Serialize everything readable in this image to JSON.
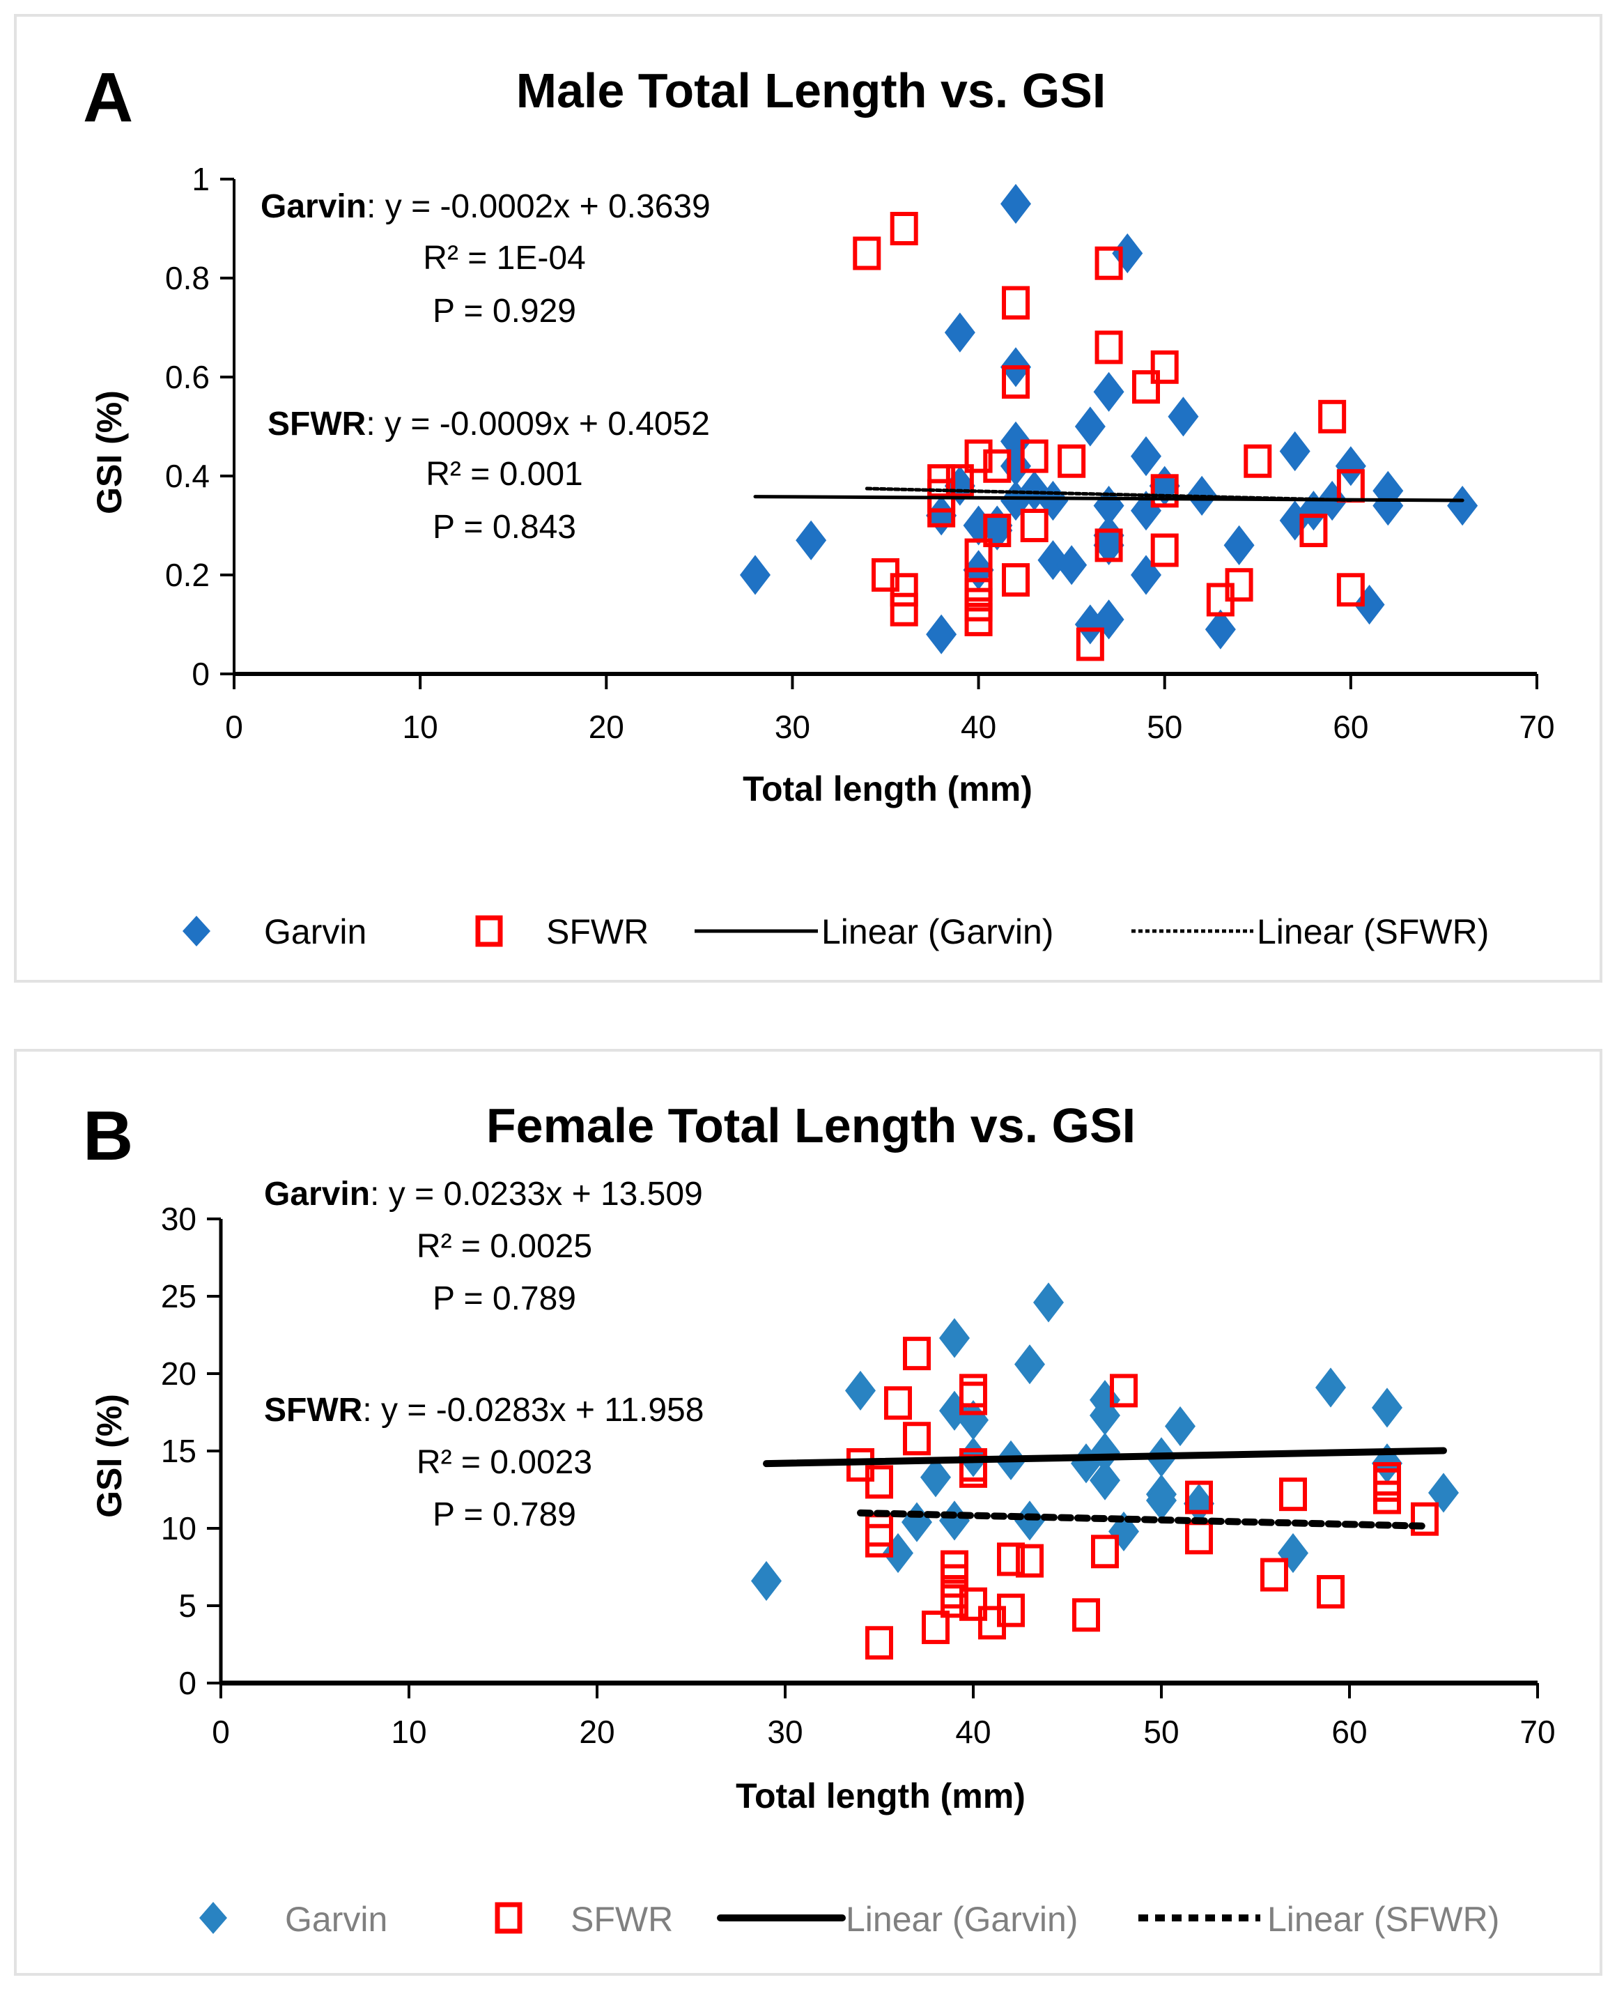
{
  "chart_data": [
    {
      "type": "scatter",
      "panel_label": "A",
      "title": "Male Total Length vs. GSI",
      "xlabel": "Total length (mm)",
      "ylabel": "GSI (%)",
      "xlim": [
        0,
        70
      ],
      "ylim": [
        0,
        1
      ],
      "xticks": [
        "0",
        "10",
        "20",
        "30",
        "40",
        "50",
        "60",
        "70"
      ],
      "yticks": [
        "0",
        "0.2",
        "0.4",
        "0.6",
        "0.8",
        "1"
      ],
      "grid": false,
      "legend_position": "bottom",
      "legend": [
        "Garvin",
        "SFWR",
        "Linear (Garvin)",
        "Linear (SFWR)"
      ],
      "annotations": {
        "garvin": {
          "label": "Garvin",
          "equation": ": y = -0.0002x + 0.3639",
          "r2": "R² = 1E-04",
          "p": "P = 0.929"
        },
        "sfwr": {
          "label": "SFWR",
          "equation": ": y = -0.0009x + 0.4052",
          "r2": "R² = 0.001",
          "p": "P = 0.843"
        }
      },
      "series": [
        {
          "name": "Garvin",
          "marker": "diamond",
          "color": "#1f72c4",
          "points": [
            [
              28,
              0.2
            ],
            [
              31,
              0.27
            ],
            [
              38,
              0.08
            ],
            [
              38,
              0.32
            ],
            [
              39,
              0.69
            ],
            [
              39,
              0.38
            ],
            [
              40,
              0.3
            ],
            [
              40,
              0.21
            ],
            [
              41,
              0.29
            ],
            [
              41,
              0.3
            ],
            [
              42,
              0.95
            ],
            [
              42,
              0.62
            ],
            [
              42,
              0.47
            ],
            [
              42,
              0.42
            ],
            [
              42,
              0.35
            ],
            [
              43,
              0.37
            ],
            [
              44,
              0.35
            ],
            [
              44,
              0.23
            ],
            [
              45,
              0.22
            ],
            [
              46,
              0.5
            ],
            [
              46,
              0.1
            ],
            [
              47,
              0.57
            ],
            [
              47,
              0.34
            ],
            [
              47,
              0.28
            ],
            [
              47,
              0.26
            ],
            [
              47,
              0.11
            ],
            [
              48,
              0.85
            ],
            [
              49,
              0.44
            ],
            [
              49,
              0.33
            ],
            [
              49,
              0.2
            ],
            [
              50,
              0.38
            ],
            [
              51,
              0.52
            ],
            [
              52,
              0.36
            ],
            [
              53,
              0.09
            ],
            [
              54,
              0.26
            ],
            [
              57,
              0.45
            ],
            [
              57,
              0.31
            ],
            [
              58,
              0.33
            ],
            [
              59,
              0.35
            ],
            [
              60,
              0.42
            ],
            [
              61,
              0.14
            ],
            [
              62,
              0.37
            ],
            [
              62,
              0.34
            ],
            [
              66,
              0.34
            ]
          ]
        },
        {
          "name": "SFWR",
          "marker": "open-square",
          "color": "#ff0000",
          "points": [
            [
              34,
              0.85
            ],
            [
              35,
              0.2
            ],
            [
              36,
              0.9
            ],
            [
              36,
              0.17
            ],
            [
              36,
              0.13
            ],
            [
              38,
              0.39
            ],
            [
              38,
              0.36
            ],
            [
              38,
              0.33
            ],
            [
              39,
              0.39
            ],
            [
              40,
              0.44
            ],
            [
              40,
              0.24
            ],
            [
              40,
              0.18
            ],
            [
              40,
              0.16
            ],
            [
              40,
              0.14
            ],
            [
              40,
              0.11
            ],
            [
              41,
              0.42
            ],
            [
              41,
              0.29
            ],
            [
              42,
              0.75
            ],
            [
              42,
              0.59
            ],
            [
              42,
              0.19
            ],
            [
              43,
              0.44
            ],
            [
              43,
              0.3
            ],
            [
              45,
              0.43
            ],
            [
              46,
              0.06
            ],
            [
              47,
              0.83
            ],
            [
              47,
              0.66
            ],
            [
              47,
              0.26
            ],
            [
              49,
              0.58
            ],
            [
              50,
              0.62
            ],
            [
              50,
              0.37
            ],
            [
              50,
              0.25
            ],
            [
              53,
              0.15
            ],
            [
              54,
              0.18
            ],
            [
              55,
              0.43
            ],
            [
              58,
              0.29
            ],
            [
              59,
              0.52
            ],
            [
              60,
              0.38
            ],
            [
              60,
              0.17
            ]
          ]
        }
      ],
      "trendlines": [
        {
          "name": "Linear (Garvin)",
          "slope": -0.0002,
          "intercept": 0.3639,
          "x_range": [
            28,
            66
          ],
          "style": "solid"
        },
        {
          "name": "Linear (SFWR)",
          "slope": -0.0009,
          "intercept": 0.4052,
          "x_range": [
            34,
            60
          ],
          "style": "dotted"
        }
      ]
    },
    {
      "type": "scatter",
      "panel_label": "B",
      "title": "Female Total Length vs. GSI",
      "xlabel": "Total length (mm)",
      "ylabel": "GSI (%)",
      "xlim": [
        0,
        70
      ],
      "ylim": [
        0,
        30
      ],
      "xticks": [
        "0",
        "10",
        "20",
        "30",
        "40",
        "50",
        "60",
        "70"
      ],
      "yticks": [
        "0",
        "5",
        "10",
        "15",
        "20",
        "25",
        "30"
      ],
      "grid": false,
      "legend_position": "bottom",
      "legend": [
        "Garvin",
        "SFWR",
        "Linear (Garvin)",
        "Linear (SFWR)"
      ],
      "annotations": {
        "garvin": {
          "label": "Garvin",
          "equation": ": y = 0.0233x + 13.509",
          "r2": "R² = 0.0025",
          "p": "P = 0.789"
        },
        "sfwr": {
          "label": "SFWR",
          "equation": ": y = -0.0283x + 11.958",
          "r2": "R² = 0.0023",
          "p": "P = 0.789"
        }
      },
      "series": [
        {
          "name": "Garvin",
          "marker": "diamond",
          "color": "#2983c2",
          "points": [
            [
              29,
              6.6
            ],
            [
              34,
              18.9
            ],
            [
              36,
              8.4
            ],
            [
              37,
              10.4
            ],
            [
              38,
              13.3
            ],
            [
              39,
              22.3
            ],
            [
              39,
              17.6
            ],
            [
              39,
              10.5
            ],
            [
              40,
              17.0
            ],
            [
              40,
              14.6
            ],
            [
              42,
              14.4
            ],
            [
              43,
              20.6
            ],
            [
              43,
              10.5
            ],
            [
              44,
              24.6
            ],
            [
              46,
              14.2
            ],
            [
              47,
              18.3
            ],
            [
              47,
              17.3
            ],
            [
              47,
              14.9
            ],
            [
              47,
              13.1
            ],
            [
              48,
              9.8
            ],
            [
              50,
              14.6
            ],
            [
              50,
              12.2
            ],
            [
              50,
              11.8
            ],
            [
              51,
              16.6
            ],
            [
              52,
              11.6
            ],
            [
              57,
              8.4
            ],
            [
              59,
              19.1
            ],
            [
              62,
              17.8
            ],
            [
              62,
              14.2
            ],
            [
              65,
              12.3
            ]
          ]
        },
        {
          "name": "SFWR",
          "marker": "open-square",
          "color": "#ff0000",
          "points": [
            [
              34,
              14.1
            ],
            [
              35,
              13.0
            ],
            [
              35,
              9.9
            ],
            [
              35,
              9.2
            ],
            [
              35,
              2.6
            ],
            [
              36,
              18.1
            ],
            [
              37,
              21.3
            ],
            [
              37,
              15.8
            ],
            [
              38,
              3.6
            ],
            [
              39,
              7.5
            ],
            [
              39,
              6.6
            ],
            [
              39,
              5.9
            ],
            [
              39,
              5.3
            ],
            [
              40,
              18.9
            ],
            [
              40,
              18.4
            ],
            [
              40,
              14.1
            ],
            [
              40,
              13.7
            ],
            [
              40,
              5.1
            ],
            [
              41,
              3.9
            ],
            [
              42,
              8.0
            ],
            [
              42,
              4.7
            ],
            [
              43,
              7.9
            ],
            [
              46,
              4.4
            ],
            [
              47,
              8.5
            ],
            [
              48,
              18.9
            ],
            [
              52,
              12.0
            ],
            [
              52,
              9.4
            ],
            [
              56,
              7.0
            ],
            [
              57,
              12.2
            ],
            [
              59,
              5.9
            ],
            [
              62,
              13.2
            ],
            [
              62,
              12.8
            ],
            [
              62,
              12.0
            ],
            [
              64,
              10.6
            ]
          ]
        }
      ],
      "trendlines": [
        {
          "name": "Linear (Garvin)",
          "slope": 0.0233,
          "intercept": 13.509,
          "x_range": [
            29,
            65
          ],
          "style": "solid"
        },
        {
          "name": "Linear (SFWR)",
          "slope": -0.0283,
          "intercept": 11.958,
          "x_range": [
            34,
            64
          ],
          "style": "dashed"
        }
      ]
    }
  ]
}
